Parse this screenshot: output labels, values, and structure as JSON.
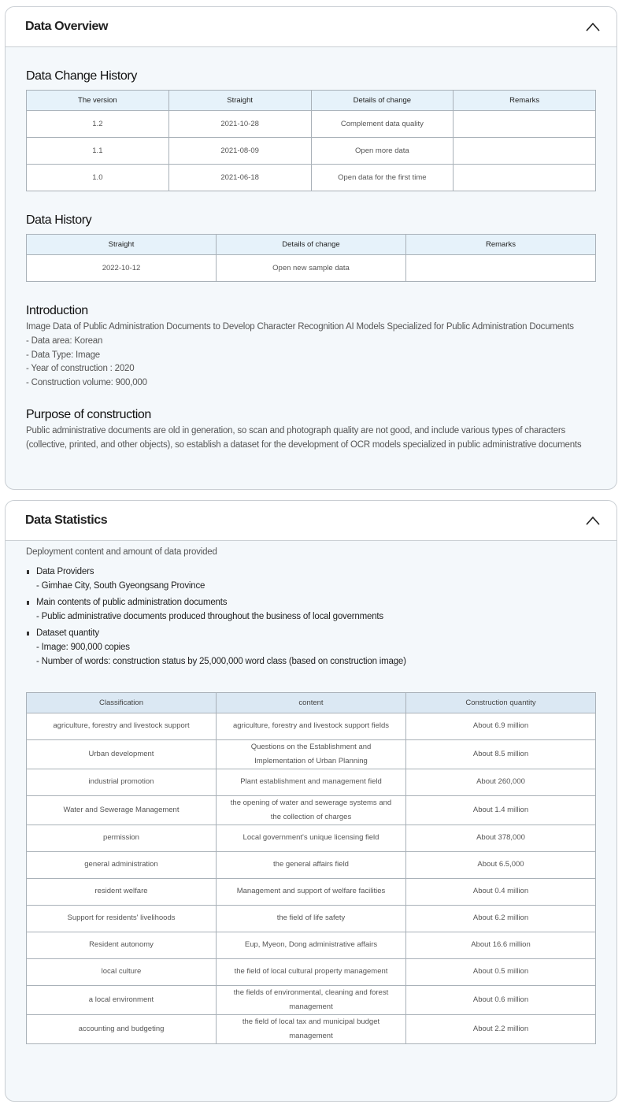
{
  "overview": {
    "title": "Data Overview",
    "change_history": {
      "title": "Data Change History",
      "headers": [
        "The version",
        "Straight",
        "Details of change",
        "Remarks"
      ],
      "rows": [
        [
          "1.2",
          "2021-10-28",
          "Complement data quality",
          ""
        ],
        [
          "1.1",
          "2021-08-09",
          "Open more data",
          ""
        ],
        [
          "1.0",
          "2021-06-18",
          "Open data for the first time",
          ""
        ]
      ]
    },
    "data_history": {
      "title": "Data History",
      "headers": [
        "Straight",
        "Details of change",
        "Remarks"
      ],
      "rows": [
        [
          "2022-10-12",
          "Open new sample data",
          ""
        ]
      ]
    },
    "introduction": {
      "title": "Introduction",
      "lines": [
        "Image Data of Public Administration Documents to Develop Character Recognition AI Models Specialized for Public Administration Documents",
        "- Data area: Korean",
        "- Data Type: Image",
        "- Year of construction : 2020",
        "- Construction volume: 900,000"
      ]
    },
    "purpose": {
      "title": "Purpose of construction",
      "text": "Public administrative documents are old in generation, so scan and photograph quality are not good, and include various types of characters (collective, printed, and other objects), so establish a dataset for the development of OCR models specialized in public administrative documents"
    }
  },
  "statistics": {
    "title": "Data Statistics",
    "intro": "Deployment content and amount of data provided",
    "bullets": [
      {
        "label": "Data Providers",
        "lines": [
          "- Gimhae City, South Gyeongsang Province"
        ]
      },
      {
        "label": "Main contents of public administration documents",
        "lines": [
          "- Public administrative documents produced throughout the business of local governments"
        ]
      },
      {
        "label": "Dataset quantity",
        "lines": [
          "- Image: 900,000 copies",
          "- Number of words: construction status by 25,000,000 word class (based on construction image)"
        ]
      }
    ],
    "table": {
      "headers": [
        "Classification",
        "content",
        "Construction quantity"
      ],
      "rows": [
        [
          "agriculture, forestry and livestock support",
          "agriculture, forestry and livestock support fields",
          "About 6.9 million"
        ],
        [
          "Urban development",
          "Questions on the Establishment and Implementation of Urban Planning",
          "About 8.5 million"
        ],
        [
          "industrial promotion",
          "Plant establishment and management field",
          "About 260,000"
        ],
        [
          "Water and Sewerage Management",
          "the opening of water and sewerage systems and the collection of charges",
          "About 1.4 million"
        ],
        [
          "permission",
          "Local government's unique licensing field",
          "About 378,000"
        ],
        [
          "general administration",
          "the general affairs field",
          "About 6.5,000"
        ],
        [
          "resident welfare",
          "Management and support of welfare facilities",
          "About 0.4 million"
        ],
        [
          "Support for residents' livelihoods",
          "the field of life safety",
          "About 6.2 million"
        ],
        [
          "Resident autonomy",
          "Eup, Myeon, Dong administrative affairs",
          "About 16.6 million"
        ],
        [
          "local culture",
          "the field of local cultural property management",
          "About 0.5 million"
        ],
        [
          "a local environment",
          "the fields of environmental, cleaning and forest management",
          "About 0.6 million"
        ],
        [
          "accounting and budgeting",
          "the field of local tax and municipal budget management",
          "About 2.2 million"
        ]
      ]
    }
  }
}
